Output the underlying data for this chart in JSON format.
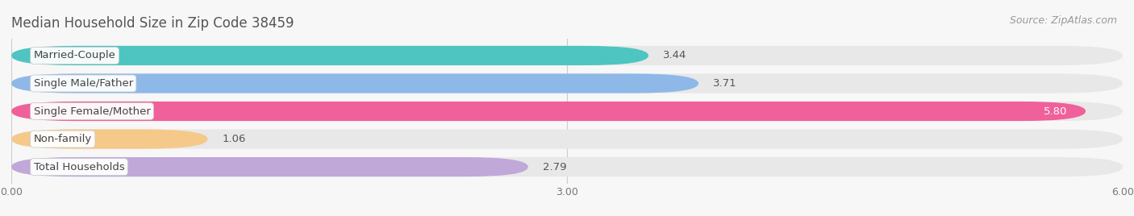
{
  "title": "Median Household Size in Zip Code 38459",
  "source": "Source: ZipAtlas.com",
  "categories": [
    "Married-Couple",
    "Single Male/Father",
    "Single Female/Mother",
    "Non-family",
    "Total Households"
  ],
  "values": [
    3.44,
    3.71,
    5.8,
    1.06,
    2.79
  ],
  "bar_colors": [
    "#4EC5C1",
    "#8EB8E8",
    "#F0609A",
    "#F5C98A",
    "#C0A8D8"
  ],
  "xlim": [
    0,
    6.0
  ],
  "xticks": [
    0.0,
    3.0,
    6.0
  ],
  "xtick_labels": [
    "0.00",
    "3.00",
    "6.00"
  ],
  "title_fontsize": 12,
  "source_fontsize": 9,
  "label_fontsize": 9.5,
  "value_fontsize": 9.5,
  "background_color": "#f7f7f7",
  "bar_bg_color": "#e8e8e8",
  "value_label_inside_threshold": 0.85
}
